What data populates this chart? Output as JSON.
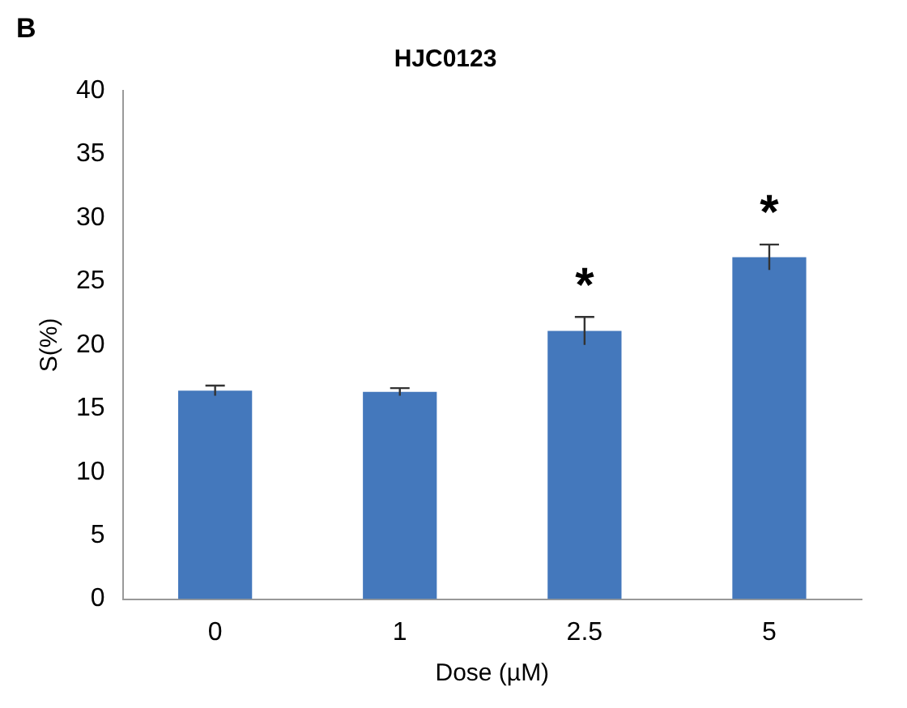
{
  "chart_data": {
    "type": "bar",
    "title": "HJC0123",
    "xlabel": "Dose (µM)",
    "ylabel": "S(%)",
    "categories": [
      "0",
      "1",
      "2.5",
      "5"
    ],
    "values": [
      16.4,
      16.3,
      21.1,
      26.9
    ],
    "errors": [
      0.4,
      0.3,
      1.1,
      1.0
    ],
    "color": "#4478bc",
    "ylim": [
      0,
      40
    ],
    "yticks": [
      0,
      5,
      10,
      15,
      20,
      25,
      30,
      35,
      40
    ],
    "grid": false,
    "legend": false,
    "annotations": [
      "B",
      "*",
      "*"
    ]
  }
}
